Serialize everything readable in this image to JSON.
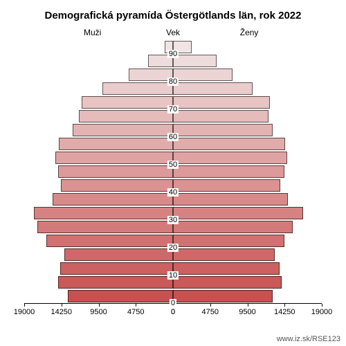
{
  "chart": {
    "type": "population-pyramid",
    "title": "Demografická pyramída Östergötlands län, rok 2022",
    "title_fontsize": 15,
    "label_men": "Muži",
    "label_age": "Vek",
    "label_women": "Ženy",
    "label_fontsize": 12,
    "background_color": "#ffffff",
    "bar_border_color": "#333333",
    "x_axis": {
      "max": 19000,
      "ticks": [
        19000,
        14250,
        9500,
        4750,
        0
      ],
      "ticks_right": [
        0,
        4750,
        9500,
        14250,
        19000
      ]
    },
    "y_axis": {
      "ticks": [
        0,
        10,
        20,
        30,
        40,
        50,
        60,
        70,
        80,
        90
      ]
    },
    "age_step": 5,
    "groups": [
      {
        "age_lo": 90,
        "men": 1100,
        "women": 2400,
        "color": "#f0e4e4"
      },
      {
        "age_lo": 85,
        "men": 3200,
        "women": 5600,
        "color": "#eedcdc"
      },
      {
        "age_lo": 80,
        "men": 5700,
        "women": 7600,
        "color": "#ecd4d4"
      },
      {
        "age_lo": 75,
        "men": 9000,
        "women": 10200,
        "color": "#eacccc"
      },
      {
        "age_lo": 70,
        "men": 11700,
        "women": 12400,
        "color": "#e8c4c4"
      },
      {
        "age_lo": 65,
        "men": 12000,
        "women": 12200,
        "color": "#e5bbbb"
      },
      {
        "age_lo": 60,
        "men": 12800,
        "women": 12700,
        "color": "#e3b3b3"
      },
      {
        "age_lo": 55,
        "men": 14600,
        "women": 14300,
        "color": "#e1abab"
      },
      {
        "age_lo": 50,
        "men": 15000,
        "women": 14600,
        "color": "#dfa3a3"
      },
      {
        "age_lo": 45,
        "men": 14700,
        "women": 14200,
        "color": "#dc9a9a"
      },
      {
        "age_lo": 40,
        "men": 14300,
        "women": 13700,
        "color": "#da9292"
      },
      {
        "age_lo": 35,
        "men": 15400,
        "women": 14700,
        "color": "#d88a8a"
      },
      {
        "age_lo": 30,
        "men": 17800,
        "women": 16600,
        "color": "#d68282"
      },
      {
        "age_lo": 25,
        "men": 17300,
        "women": 15300,
        "color": "#d47a7a"
      },
      {
        "age_lo": 20,
        "men": 16200,
        "women": 14200,
        "color": "#d17171"
      },
      {
        "age_lo": 15,
        "men": 13900,
        "women": 13000,
        "color": "#cf6969"
      },
      {
        "age_lo": 10,
        "men": 14400,
        "women": 13600,
        "color": "#cd6161"
      },
      {
        "age_lo": 5,
        "men": 14700,
        "women": 13900,
        "color": "#cb5959"
      },
      {
        "age_lo": 0,
        "men": 13400,
        "women": 12700,
        "color": "#c85050"
      }
    ],
    "footer": "www.iz.sk/RSE123"
  }
}
